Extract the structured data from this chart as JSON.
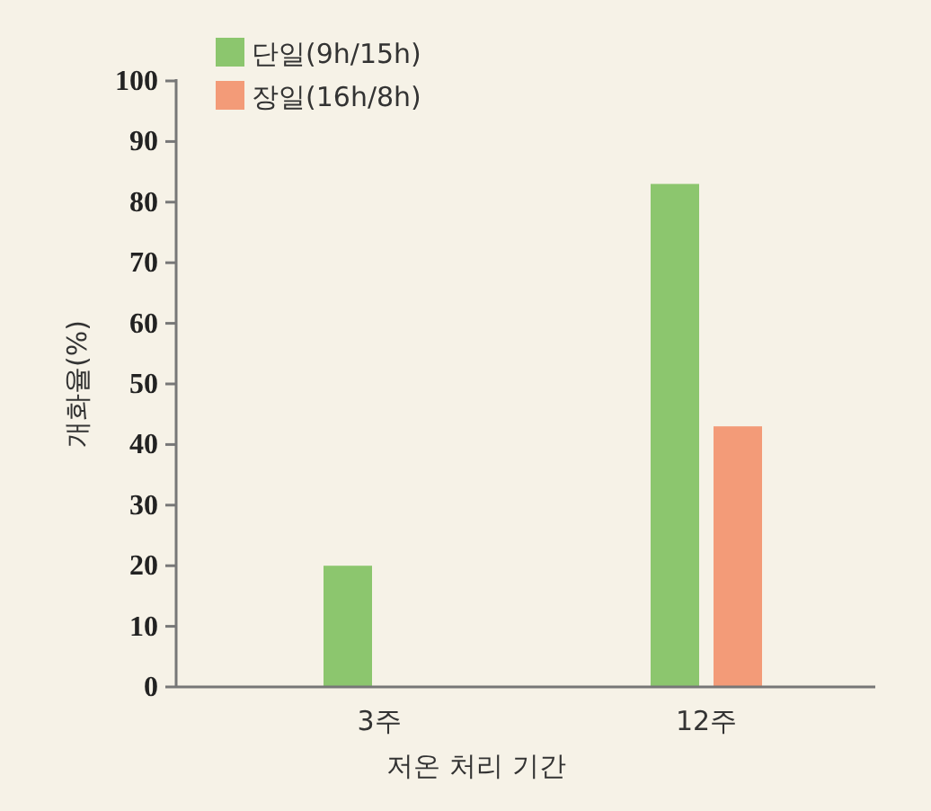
{
  "chart_data": {
    "type": "bar",
    "xlabel": "저온 처리 기간",
    "ylabel": "개화율(%)",
    "categories": [
      "3주",
      "12주"
    ],
    "series": [
      {
        "name": "단일(9h/15h)",
        "color": "#8cc66e",
        "values": [
          20,
          83
        ]
      },
      {
        "name": "장일(16h/8h)",
        "color": "#f39b78",
        "values": [
          0,
          43
        ]
      }
    ],
    "ylim": [
      0,
      100
    ],
    "yticks": [
      0,
      10,
      20,
      30,
      40,
      50,
      60,
      70,
      80,
      90,
      100
    ],
    "legend": "top left"
  }
}
